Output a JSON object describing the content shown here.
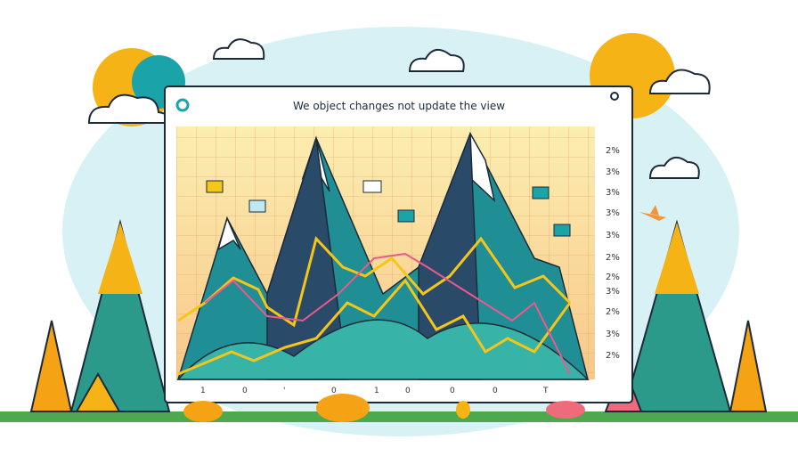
{
  "window": {
    "title": "We object changes not update the view",
    "right_labels": [
      "2%",
      "3%",
      "3%",
      "3%",
      "3%",
      "2%",
      "2%",
      "3%",
      "2%",
      "3%",
      "2%"
    ],
    "bottom_labels": [
      "1",
      "0",
      "'",
      "0",
      "1",
      "0",
      "0",
      "0",
      "T"
    ]
  }
}
